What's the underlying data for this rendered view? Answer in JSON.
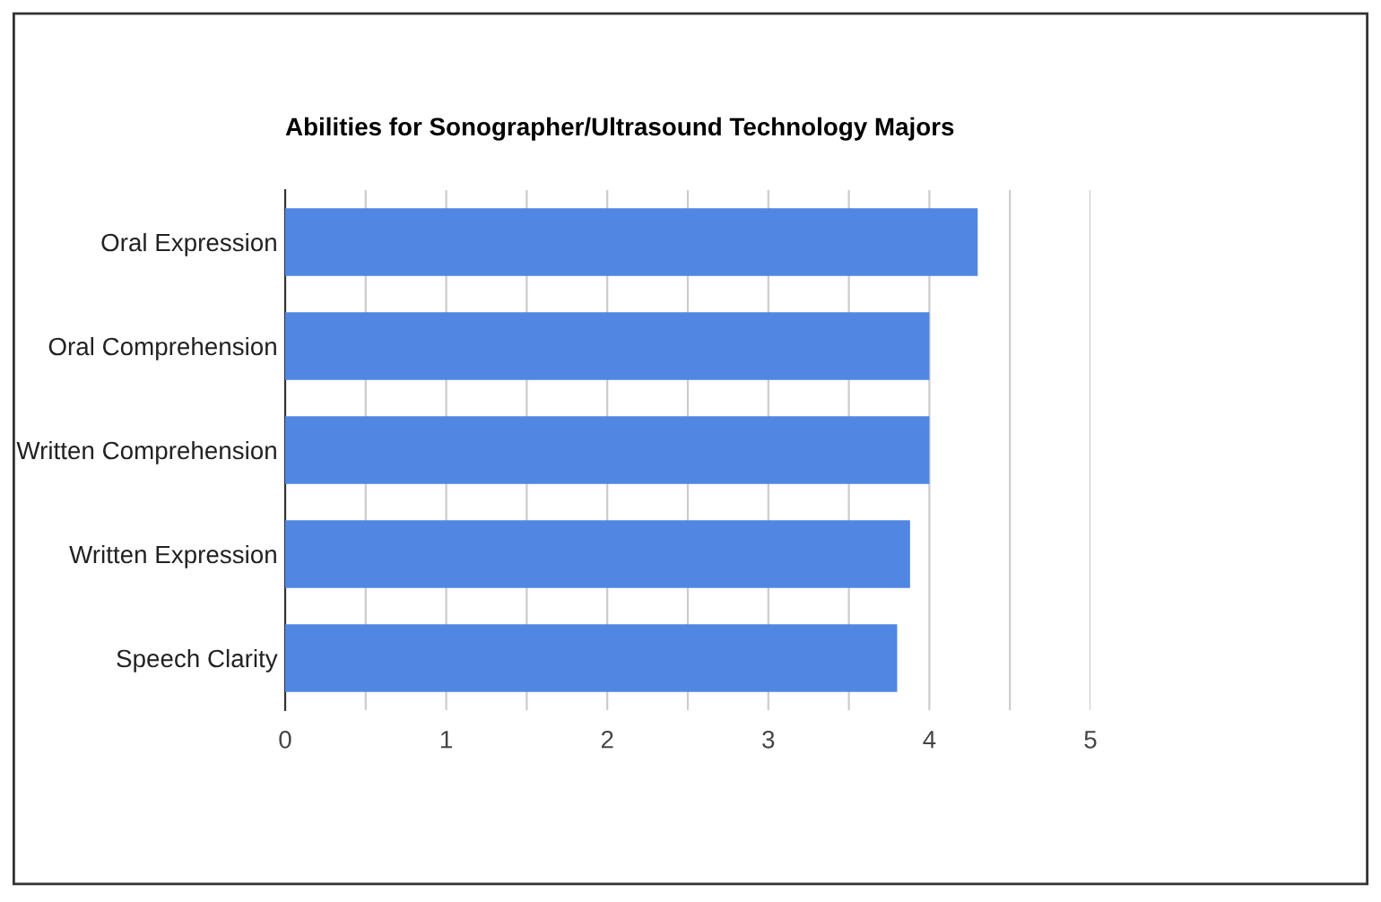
{
  "chart_data": {
    "type": "bar",
    "orientation": "horizontal",
    "title": "Abilities for Sonographer/Ultrasound Technology Majors",
    "categories": [
      "Oral Expression",
      "Oral Comprehension",
      "Written Comprehension",
      "Written Expression",
      "Speech Clarity"
    ],
    "values": [
      4.3,
      4.0,
      4.0,
      3.88,
      3.8
    ],
    "color": "#5186e3",
    "xlim": [
      0,
      5
    ],
    "xticks": [
      0,
      {
        "value": 0.5,
        "label": null
      },
      1,
      {
        "value": 1.5,
        "label": null
      },
      2,
      {
        "value": 2.5,
        "label": null
      },
      3,
      {
        "value": 3.5,
        "label": null
      },
      4,
      {
        "value": 4.5,
        "label": null
      },
      5
    ],
    "grid": "x",
    "legend": false
  }
}
